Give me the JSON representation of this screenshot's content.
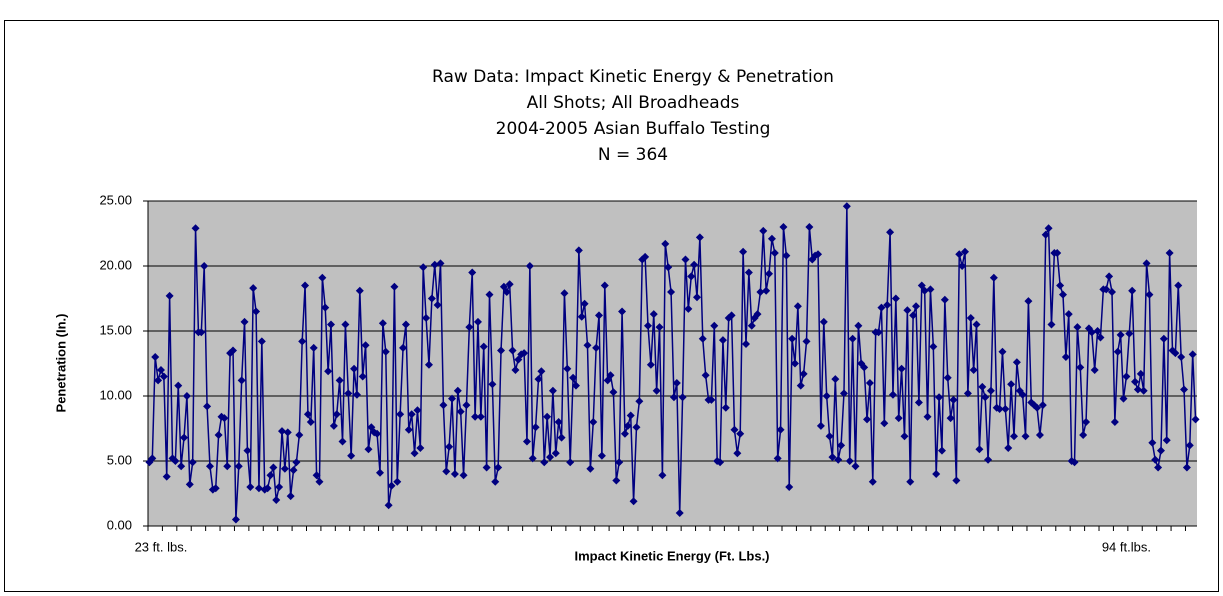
{
  "chart_data": {
    "type": "line",
    "title": [
      "Raw Data: Impact Kinetic Energy & Penetration",
      "All Shots; All Broadheads",
      "2004-2005 Asian Buffalo Testing",
      "N = 364"
    ],
    "xlabel": "Impact Kinetic Energy (Ft. Lbs.)",
    "ylabel": "Penetration (In.)",
    "ylim": [
      0,
      25
    ],
    "yticks": [
      {
        "value": 0,
        "label": "0.00"
      },
      {
        "value": 5,
        "label": "5.00"
      },
      {
        "value": 10,
        "label": "10.00"
      },
      {
        "value": 15,
        "label": "15.00"
      },
      {
        "value": 20,
        "label": "20.00"
      },
      {
        "value": 25,
        "label": "25.00"
      }
    ],
    "grid": true,
    "categories": [
      null,
      null,
      null,
      null,
      "23 ft. lbs.",
      null,
      null,
      null,
      null,
      null,
      null,
      null,
      null,
      null,
      null,
      null,
      null,
      null,
      null,
      null,
      null,
      null,
      null,
      null,
      null,
      null,
      null,
      null,
      null,
      null,
      null,
      null,
      null,
      null,
      null,
      null,
      null,
      null,
      null,
      null,
      null,
      null,
      null,
      null,
      null,
      null,
      null,
      null,
      null,
      null,
      null,
      null,
      null,
      null,
      null,
      null,
      null,
      null,
      null,
      null,
      null,
      null,
      null,
      null,
      null,
      null,
      null,
      null,
      null,
      null,
      null,
      null,
      null,
      null,
      null,
      null,
      null,
      null,
      null,
      null,
      null,
      null,
      null,
      null,
      null,
      null,
      null,
      null,
      null,
      null,
      null,
      null,
      null,
      null,
      null,
      null,
      null,
      null,
      null,
      null,
      null,
      null,
      null,
      null,
      null,
      null,
      null,
      null,
      null,
      null,
      null,
      null,
      null,
      null,
      null,
      null,
      null,
      null,
      null,
      null,
      null,
      null,
      null,
      null,
      null,
      null,
      null,
      null,
      null,
      null,
      null,
      null,
      null,
      null,
      null,
      null,
      null,
      null,
      null,
      null,
      null,
      null,
      null,
      null,
      null,
      null,
      null,
      null,
      null,
      null,
      null,
      null,
      null,
      null,
      null,
      null,
      null,
      null,
      null,
      null,
      null,
      null,
      null,
      null,
      null,
      null,
      null,
      null,
      null,
      null,
      null,
      null,
      null,
      null,
      null,
      null,
      null,
      null,
      null,
      null,
      null,
      null,
      null,
      null,
      null,
      null,
      null,
      null,
      null,
      null,
      null,
      null,
      null,
      null,
      null,
      null,
      null,
      null,
      null,
      null,
      null,
      null,
      null,
      null,
      null,
      null,
      null,
      null,
      null,
      null,
      null,
      null,
      null,
      null,
      null,
      null,
      null,
      null,
      null,
      null,
      null,
      null,
      null,
      null,
      null,
      null,
      null,
      null,
      null,
      null,
      null,
      null,
      null,
      null,
      null,
      null,
      null,
      null,
      null,
      null,
      null,
      null,
      null,
      null,
      null,
      null,
      null,
      null,
      null,
      null,
      null,
      null,
      null,
      null,
      null,
      null,
      null,
      null,
      null,
      null,
      null,
      null,
      null,
      null,
      null,
      null,
      null,
      null,
      null,
      null,
      null,
      null,
      null,
      null,
      null,
      null,
      null,
      null,
      null,
      null,
      null,
      null,
      null,
      null,
      null,
      null,
      null,
      null,
      null,
      null,
      null,
      null,
      null,
      null,
      null,
      null,
      null,
      null,
      null,
      null,
      null,
      null,
      null,
      null,
      null,
      null,
      null,
      null,
      null,
      null,
      null,
      null,
      null,
      null,
      null,
      null,
      null,
      null,
      null,
      null,
      null,
      null,
      null,
      null,
      null,
      null,
      null,
      null,
      null,
      null,
      null,
      null,
      null,
      null,
      null,
      null,
      null,
      null,
      null,
      "94 ft.lbs.",
      null,
      null,
      null,
      null,
      null,
      null,
      null,
      null,
      null,
      null,
      null,
      null,
      null,
      null,
      null,
      null,
      null,
      null,
      null,
      null,
      null,
      null,
      null,
      null
    ],
    "series": [
      {
        "color": "#000080",
        "values": [
          4.9,
          5.2,
          13,
          11.2,
          12,
          11.5,
          3.8,
          17.7,
          5.2,
          5.0,
          10.8,
          4.6,
          6.8,
          10,
          3.2,
          4.9,
          22.9,
          14.9,
          14.9,
          20,
          9.2,
          4.6,
          2.8,
          2.9,
          7,
          8.4,
          8.3,
          4.6,
          13.3,
          13.5,
          0.5,
          4.6,
          11.2,
          15.7,
          5.8,
          3,
          18.3,
          16.5,
          2.9,
          14.2,
          2.8,
          2.9,
          3.9,
          4.5,
          2,
          3,
          7.3,
          4.4,
          7.2,
          2.3,
          4.3,
          4.9,
          7,
          14.2,
          18.5,
          8.6,
          8,
          13.7,
          3.9,
          3.4,
          19.1,
          16.8,
          11.9,
          15.5,
          7.7,
          8.6,
          11.2,
          6.5,
          15.5,
          10.2,
          5.4,
          12.1,
          10.1,
          18.1,
          11.5,
          13.9,
          5.9,
          7.6,
          7.2,
          7.1,
          4.1,
          15.6,
          13.4,
          1.6,
          3.1,
          18.4,
          3.4,
          8.6,
          13.7,
          15.5,
          7.4,
          8.6,
          5.6,
          8.9,
          6,
          19.9,
          16,
          12.4,
          17.5,
          20.1,
          17,
          20.2,
          9.3,
          4.2,
          6.1,
          9.8,
          4,
          10.4,
          8.8,
          3.9,
          9.3,
          15.3,
          19.5,
          8.4,
          15.7,
          8.4,
          13.8,
          4.5,
          17.8,
          10.9,
          3.4,
          4.5,
          13.5,
          18.4,
          18,
          18.6,
          13.5,
          12,
          12.8,
          13.2,
          13.3,
          6.5,
          20,
          5.2,
          7.6,
          11.3,
          11.9,
          4.9,
          8.4,
          5.3,
          10.4,
          5.6,
          8,
          6.8,
          17.9,
          12.1,
          4.9,
          11.4,
          10.8,
          21.2,
          16.1,
          17.1,
          13.9,
          4.4,
          8,
          13.7,
          16.2,
          5.4,
          18.5,
          11.2,
          11.6,
          10.3,
          3.5,
          4.9,
          16.5,
          7.1,
          7.7,
          8.5,
          1.9,
          7.6,
          9.6,
          20.5,
          20.7,
          15.4,
          12.4,
          16.3,
          10.4,
          15.3,
          3.9,
          21.7,
          19.9,
          18,
          9.9,
          11,
          1,
          9.9,
          20.5,
          16.7,
          19.2,
          20.1,
          17.6,
          22.2,
          14.4,
          11.6,
          9.7,
          9.7,
          15.4,
          5,
          4.9,
          14.3,
          9.1,
          16,
          16.2,
          7.4,
          5.6,
          7.1,
          21.1,
          14,
          19.5,
          15.4,
          16,
          16.3,
          18,
          22.7,
          18.1,
          19.4,
          22.1,
          21,
          5.2,
          7.4,
          23,
          20.8,
          3,
          14.4,
          12.5,
          16.9,
          10.8,
          11.7,
          14.2,
          23,
          20.5,
          20.8,
          20.9,
          7.7,
          15.7,
          10,
          6.9,
          5.3,
          11.3,
          5.1,
          6.2,
          10.2,
          24.6,
          5,
          14.4,
          4.6,
          15.4,
          12.5,
          12.2,
          8.2,
          11,
          3.4,
          14.9,
          14.9,
          16.8,
          7.9,
          17,
          22.6,
          10.1,
          17.5,
          8.3,
          12.1,
          6.9,
          16.6,
          3.4,
          16.2,
          16.9,
          9.5,
          18.5,
          18.1,
          8.4,
          18.2,
          13.8,
          4,
          9.9,
          5.8,
          17.4,
          11.4,
          8.3,
          9.7,
          3.5,
          20.9,
          20,
          21.1,
          10.2,
          16,
          12,
          15.5,
          5.9,
          10.7,
          9.9,
          5.1,
          10.4,
          19.1,
          9.1,
          9,
          13.4,
          9,
          6,
          10.9,
          6.9,
          12.6,
          10.4,
          10.1,
          6.9,
          17.3,
          9.5,
          9.3,
          9.1,
          7,
          9.3,
          22.4,
          22.9,
          15.5,
          21,
          21,
          18.5,
          17.8,
          13,
          16.3,
          5,
          4.9,
          15.3,
          12.2,
          7,
          8,
          15.2,
          14.9,
          12,
          15,
          14.5,
          18.2,
          18.2,
          19.2,
          18,
          8,
          13.4,
          14.7,
          9.8,
          11.5,
          14.8,
          18.1,
          11.1,
          10.5,
          11.7,
          10.4,
          20.2,
          17.8,
          6.4,
          5.1,
          4.5,
          5.8,
          14.4,
          6.6,
          21,
          13.5,
          13.3,
          18.5,
          13,
          10.5,
          4.5,
          6.2,
          13.2,
          8.2
        ]
      }
    ]
  }
}
